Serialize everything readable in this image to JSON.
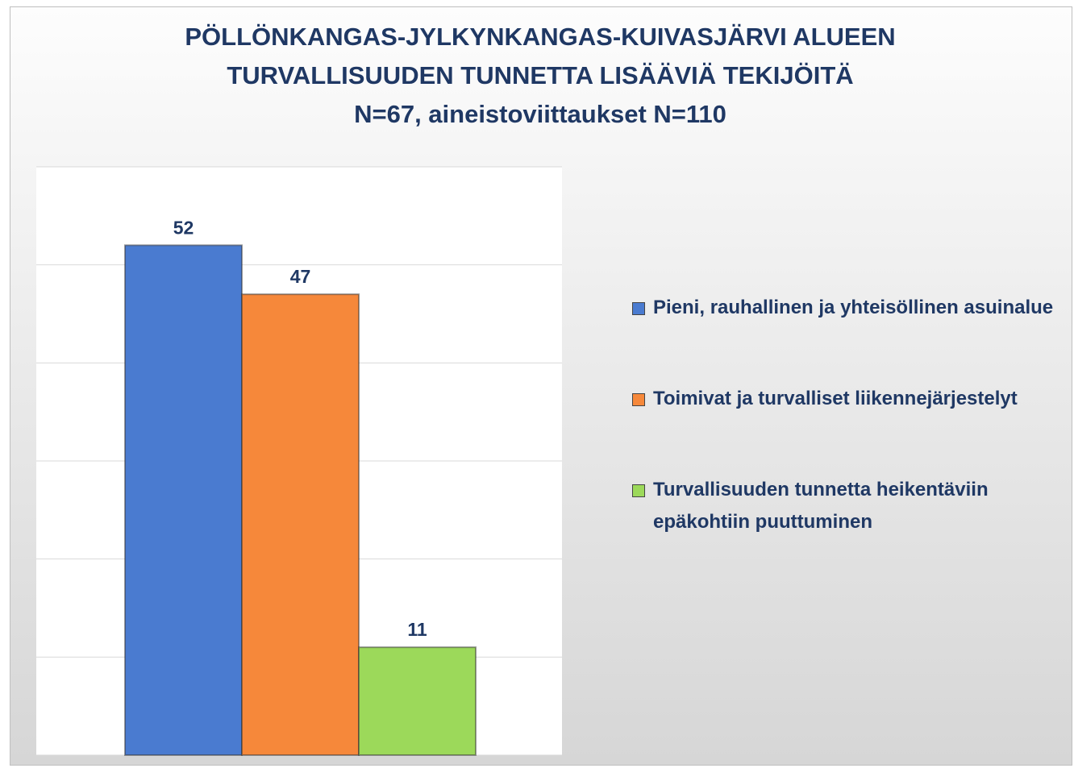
{
  "chart_data": {
    "type": "bar",
    "title": "PÖLLÖNKANGAS-JYLKYNKANGAS-KUIVASJÄRVI ALUEEN\nTURVALLISUUDEN TUNNETTA LISÄÄVIÄ TEKIJÖITÄ\nN=67, aineistoviittaukset N=110",
    "categories": [
      null
    ],
    "series": [
      {
        "name": "Pieni, rauhallinen ja yhteisöllinen asuinalue",
        "color": "#4a7bd0",
        "values": [
          52
        ]
      },
      {
        "name": "Toimivat ja turvalliset liikennejärjestelyt",
        "color": "#f6883a",
        "values": [
          47
        ]
      },
      {
        "name": "Turvallisuuden tunnetta heikentäviin epäkohtiin puuttuminen",
        "color": "#9cd95a",
        "values": [
          11
        ]
      }
    ],
    "ylim": [
      0,
      60
    ],
    "yticks": [
      0,
      10,
      20,
      30,
      40,
      50,
      60
    ],
    "grid": true,
    "legend": "right"
  }
}
